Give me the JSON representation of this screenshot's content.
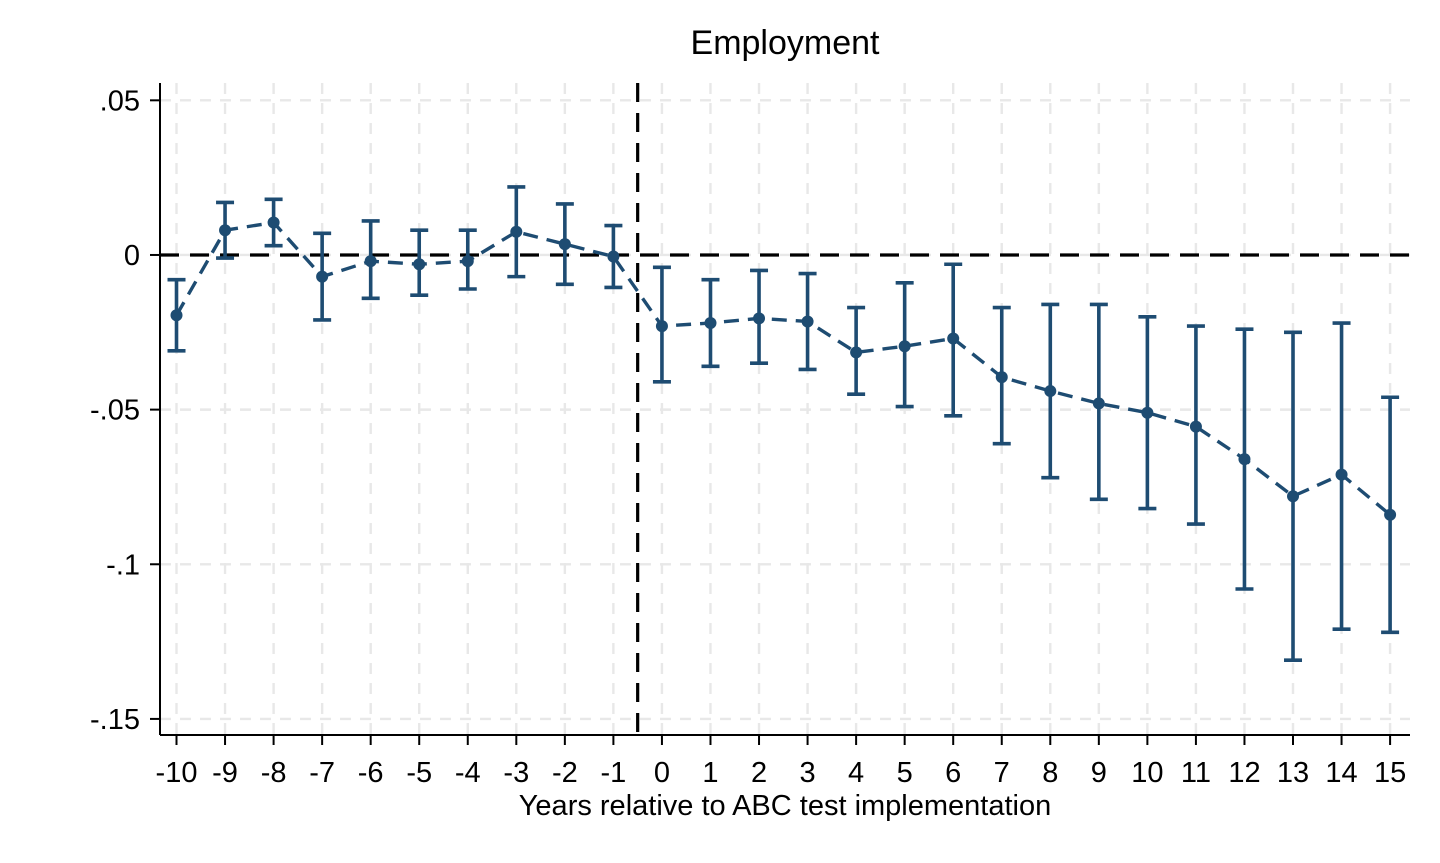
{
  "figure": {
    "title": "Employment",
    "x_axis_title": "Years relative to ABC test implementation"
  },
  "chart_data": {
    "type": "scatter",
    "subtype": "event-study point estimates with 95% confidence-interval error bars and dashed connector line",
    "title": "Employment",
    "xlabel": "Years relative to ABC test implementation",
    "ylabel": "",
    "x": [
      -10,
      -9,
      -8,
      -7,
      -6,
      -5,
      -4,
      -3,
      -2,
      -1,
      0,
      1,
      2,
      3,
      4,
      5,
      6,
      7,
      8,
      9,
      10,
      11,
      12,
      13,
      14,
      15
    ],
    "series": [
      {
        "name": "estimate",
        "values": [
          -0.0195,
          0.008,
          0.0105,
          -0.007,
          -0.002,
          -0.003,
          -0.002,
          0.0075,
          0.0035,
          -0.0005,
          -0.023,
          -0.022,
          -0.0205,
          -0.0215,
          -0.0315,
          -0.0295,
          -0.027,
          -0.0395,
          -0.044,
          -0.048,
          -0.051,
          -0.0555,
          -0.066,
          -0.078,
          -0.071,
          -0.084
        ]
      },
      {
        "name": "ci_lower",
        "values": [
          -0.031,
          -0.001,
          0.003,
          -0.021,
          -0.014,
          -0.013,
          -0.011,
          -0.007,
          -0.0095,
          -0.0105,
          -0.041,
          -0.036,
          -0.035,
          -0.037,
          -0.045,
          -0.049,
          -0.052,
          -0.061,
          -0.072,
          -0.079,
          -0.082,
          -0.087,
          -0.108,
          -0.131,
          -0.121,
          -0.122
        ]
      },
      {
        "name": "ci_upper",
        "values": [
          -0.008,
          0.017,
          0.018,
          0.007,
          0.011,
          0.008,
          0.008,
          0.022,
          0.0165,
          0.0095,
          -0.004,
          -0.008,
          -0.005,
          -0.006,
          -0.017,
          -0.009,
          -0.003,
          -0.017,
          -0.016,
          -0.016,
          -0.02,
          -0.023,
          -0.024,
          -0.025,
          -0.022,
          -0.046
        ]
      }
    ],
    "xtick_labels": [
      "-10",
      "-9",
      "-8",
      "-7",
      "-6",
      "-5",
      "-4",
      "-3",
      "-2",
      "-1",
      "0",
      "1",
      "2",
      "3",
      "4",
      "5",
      "6",
      "7",
      "8",
      "9",
      "10",
      "11",
      "12",
      "13",
      "14",
      "15"
    ],
    "yticks": [
      0.05,
      0,
      -0.05,
      -0.1,
      -0.15
    ],
    "ytick_labels": [
      ".05",
      "0",
      "-.05",
      "-.1",
      "-.15"
    ],
    "xlim": [
      -10.34,
      15.41
    ],
    "ylim": [
      -0.1552,
      0.0556
    ],
    "grid": true,
    "legend": "none",
    "reference_lines": {
      "horizontal_y": 0,
      "vertical_x": -0.5
    },
    "colors": {
      "series": "#1e4c72",
      "grid": "#e8e8e8",
      "reference": "#000000",
      "text": "#000000",
      "background": "#ffffff"
    }
  }
}
